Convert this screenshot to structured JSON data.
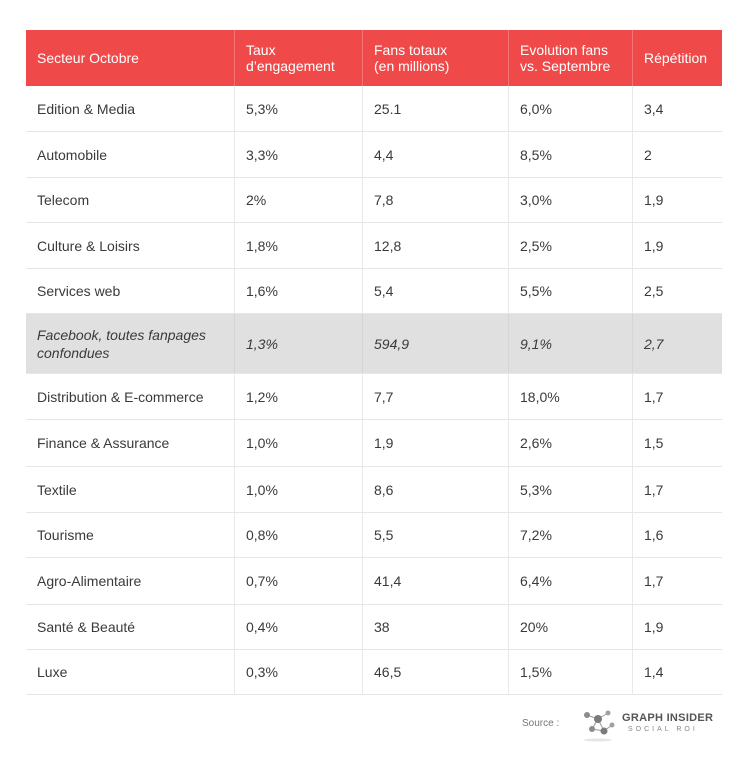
{
  "table": {
    "headers": [
      "Secteur Octobre",
      "Taux\nd’engagement",
      "Fans totaux\n(en millions)",
      "Evolution fans\nvs. Septembre",
      "Répétition"
    ],
    "rows": [
      [
        "Edition & Media",
        "5,3%",
        "25.1",
        "6,0%",
        "3,4"
      ],
      [
        "Automobile",
        "3,3%",
        "4,4",
        "8,5%",
        "2"
      ],
      [
        "Telecom",
        "2%",
        "7,8",
        "3,0%",
        "1,9"
      ],
      [
        "Culture & Loisirs",
        "1,8%",
        "12,8",
        "2,5%",
        "1,9"
      ],
      [
        "Services web",
        "1,6%",
        "5,4",
        "5,5%",
        "2,5"
      ],
      [
        "Facebook, toutes fanpages confondues",
        "1,3%",
        "594,9",
        "9,1%",
        "2,7"
      ],
      [
        "Distribution & E-commerce",
        "1,2%",
        "7,7",
        "18,0%",
        "1,7"
      ],
      [
        "Finance & Assurance",
        "1,0%",
        "1,9",
        "2,6%",
        "1,5"
      ],
      [
        "Textile",
        "1,0%",
        "8,6",
        "5,3%",
        "1,7"
      ],
      [
        "Tourisme",
        "0,8%",
        "5,5",
        "7,2%",
        "1,6"
      ],
      [
        "Agro-Alimentaire",
        "0,7%",
        "41,4",
        "6,4%",
        "1,7"
      ],
      [
        "Santé & Beauté",
        "0,4%",
        "38",
        "20%",
        "1,9"
      ],
      [
        "Luxe",
        "0,3%",
        "46,5",
        "1,5%",
        "1,4"
      ]
    ]
  },
  "footer": {
    "source_label": "Source :",
    "brand_name": "GRAPH INSIDER",
    "brand_tagline": "SOCIAL ROI"
  },
  "colors": {
    "header_bg": "#ef4a49",
    "highlight_bg": "#e0e0e0"
  }
}
